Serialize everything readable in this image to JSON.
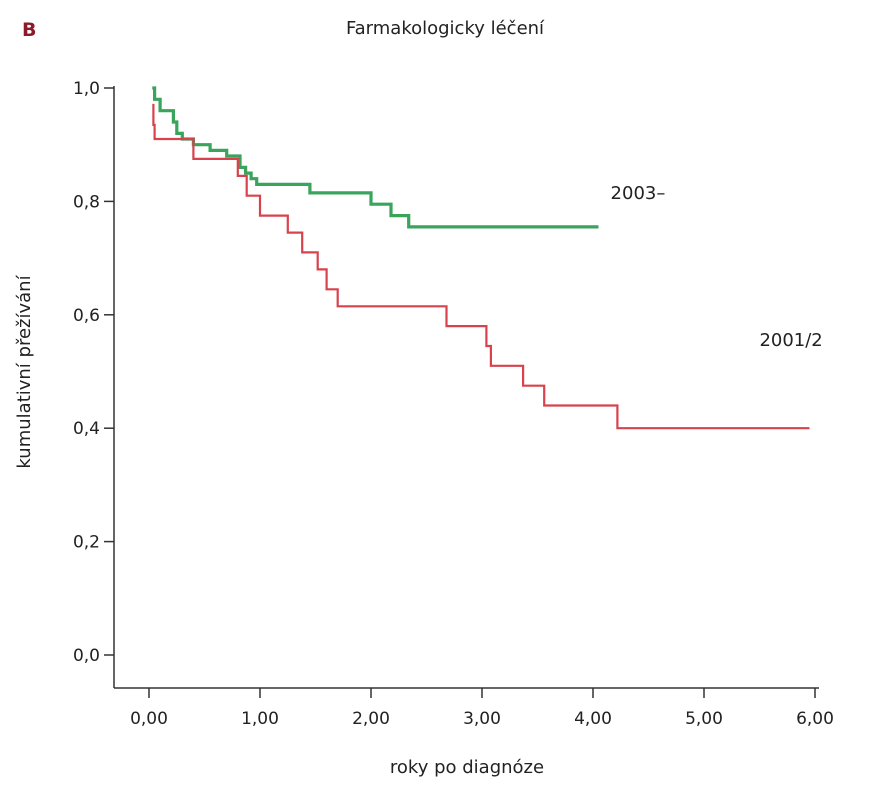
{
  "panel_letter": "B",
  "colors": {
    "panel_letter": "#8b1a2b",
    "series_2003": "#3aa35c",
    "series_2001": "#d8424c",
    "axis": "#333333"
  },
  "chart_data": {
    "type": "line",
    "step": true,
    "title": "Farmakologicky léčení",
    "xlabel": "roky po diagnóze",
    "ylabel": "kumulativní přežívání",
    "xlim": [
      0,
      6
    ],
    "ylim": [
      0,
      1
    ],
    "x_ticks": [
      {
        "value": 0,
        "label": "0,00"
      },
      {
        "value": 1,
        "label": "1,00"
      },
      {
        "value": 2,
        "label": "2,00"
      },
      {
        "value": 3,
        "label": "3,00"
      },
      {
        "value": 4,
        "label": "4,00"
      },
      {
        "value": 5,
        "label": "5,00"
      },
      {
        "value": 6,
        "label": "6,00"
      }
    ],
    "y_ticks": [
      {
        "value": 0,
        "label": "0,0"
      },
      {
        "value": 0.2,
        "label": "0,2"
      },
      {
        "value": 0.4,
        "label": "0,4"
      },
      {
        "value": 0.6,
        "label": "0,6"
      },
      {
        "value": 0.8,
        "label": "0,8"
      },
      {
        "value": 1.0,
        "label": "1,0"
      }
    ],
    "grid": false,
    "legend": "none",
    "series": [
      {
        "name": "2003–",
        "color": "#3aa35c",
        "points": [
          [
            0.03,
            1.0
          ],
          [
            0.05,
            0.98
          ],
          [
            0.1,
            0.96
          ],
          [
            0.22,
            0.94
          ],
          [
            0.25,
            0.92
          ],
          [
            0.3,
            0.91
          ],
          [
            0.4,
            0.9
          ],
          [
            0.55,
            0.89
          ],
          [
            0.7,
            0.88
          ],
          [
            0.82,
            0.86
          ],
          [
            0.87,
            0.85
          ],
          [
            0.92,
            0.84
          ],
          [
            0.97,
            0.83
          ],
          [
            1.45,
            0.815
          ],
          [
            2.0,
            0.795
          ],
          [
            2.18,
            0.775
          ],
          [
            2.34,
            0.755
          ],
          [
            4.05,
            0.755
          ]
        ]
      },
      {
        "name": "2001/2",
        "color": "#d8424c",
        "points": [
          [
            0.03,
            0.97
          ],
          [
            0.04,
            0.935
          ],
          [
            0.05,
            0.91
          ],
          [
            0.4,
            0.875
          ],
          [
            0.8,
            0.845
          ],
          [
            0.88,
            0.81
          ],
          [
            1.0,
            0.775
          ],
          [
            1.25,
            0.745
          ],
          [
            1.38,
            0.71
          ],
          [
            1.52,
            0.68
          ],
          [
            1.6,
            0.645
          ],
          [
            1.7,
            0.615
          ],
          [
            2.68,
            0.58
          ],
          [
            3.04,
            0.545
          ],
          [
            3.08,
            0.51
          ],
          [
            3.37,
            0.475
          ],
          [
            3.56,
            0.44
          ],
          [
            4.22,
            0.4
          ],
          [
            5.95,
            0.4
          ]
        ]
      }
    ]
  }
}
